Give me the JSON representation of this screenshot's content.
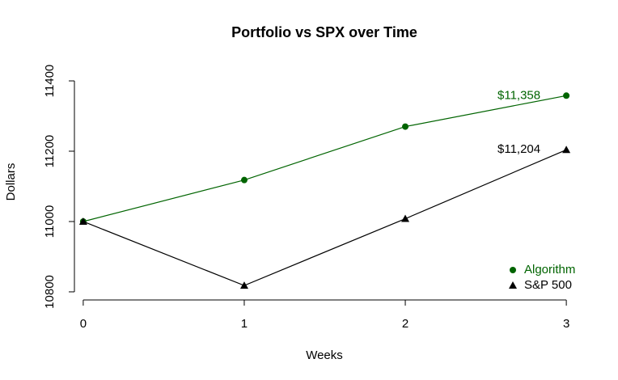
{
  "chart_data": {
    "type": "line",
    "title": "Portfolio vs SPX over Time",
    "x_label": "Weeks",
    "y_label": "Dollars",
    "x": [
      0,
      1,
      2,
      3
    ],
    "series": [
      {
        "name": "Algorithm",
        "color": "#006400",
        "marker": "circle",
        "values": [
          11000,
          11118,
          11270,
          11358
        ],
        "value_labels": [
          null,
          null,
          null,
          "$11,358"
        ]
      },
      {
        "name": "S&P 500",
        "color": "#000000",
        "marker": "triangle",
        "values": [
          11000,
          10818,
          11008,
          11204
        ],
        "value_labels": [
          null,
          null,
          null,
          "$11,204"
        ]
      }
    ],
    "xlim": [
      -0.12,
      3.12
    ],
    "xticks": [
      0,
      1,
      2,
      3
    ],
    "ylim": [
      10776,
      11424
    ],
    "yticks": [
      10800,
      11000,
      11200,
      11400
    ],
    "grid": false,
    "legend": "bottomright"
  }
}
